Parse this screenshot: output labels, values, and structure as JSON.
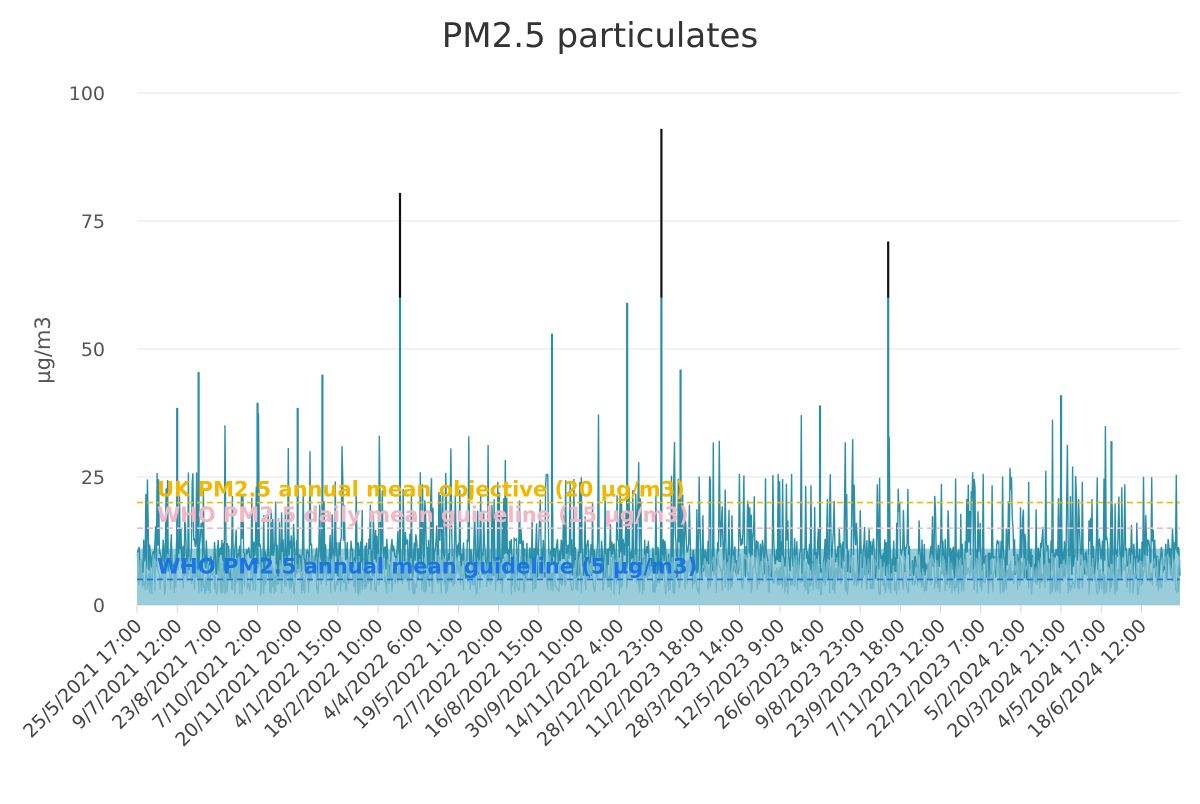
{
  "chart_data": {
    "type": "line",
    "title": "PM2.5 particulates",
    "ylabel": "µg/m3",
    "xlabel": "",
    "ylim": [
      0,
      100
    ],
    "yticks": [
      0,
      25,
      50,
      75,
      100
    ],
    "grid": true,
    "x_tick_labels": [
      "25/5/2021 17:00",
      "9/7/2021 12:00",
      "23/8/2021 7:00",
      "7/10/2021 2:00",
      "20/11/2021 20:00",
      "4/1/2022 15:00",
      "18/2/2022 10:00",
      "4/4/2022 6:00",
      "19/5/2022 1:00",
      "2/7/2022 20:00",
      "16/8/2022 15:00",
      "30/9/2022 10:00",
      "14/11/2022 4:00",
      "28/12/2022 23:00",
      "11/2/2023 18:00",
      "28/3/2023 14:00",
      "12/5/2023 9:00",
      "26/6/2023 4:00",
      "9/8/2023 23:00",
      "23/9/2023 18:00",
      "7/11/2023 12:00",
      "22/12/2023 7:00",
      "5/2/2024 2:00",
      "20/3/2024 21:00",
      "4/5/2024 17:00",
      "18/6/2024 12:00"
    ],
    "reference_lines": [
      {
        "label": "UK PM2.5 annual mean objective (20 µg/m3)",
        "value": 20,
        "color": "#f2b800"
      },
      {
        "label": "WHO PM2.5 daily mean guideline (15 µg/m3)",
        "value": 15,
        "color": "#f4b6c2"
      },
      {
        "label": "WHO PM2.5 annual mean guideline (5 µg/m3)",
        "value": 5,
        "color": "#1a73e8"
      }
    ],
    "bands": [
      {
        "from": 0,
        "to": 11,
        "color": "#7fc0d0"
      }
    ],
    "series": [
      {
        "line_color": "#2a8fa8",
        "peak_color": "#111111",
        "x_start": "25/5/2021 17:00",
        "x_end": "31/7/2024 12:00",
        "peaks": [
          {
            "x": "9/7/2021 12:00",
            "y": 38.5
          },
          {
            "x": "2/8/2021 9:00",
            "y": 45.5
          },
          {
            "x": "7/10/2021 2:00",
            "y": 39.5
          },
          {
            "x": "20/11/2021 20:00",
            "y": 38.5
          },
          {
            "x": "18/12/2021 10:00",
            "y": 45
          },
          {
            "x": "14/3/2022 22:00",
            "y": 80.5
          },
          {
            "x": "31/8/2022 9:00",
            "y": 53
          },
          {
            "x": "23/11/2022 4:00",
            "y": 59
          },
          {
            "x": "31/12/2022 8:00",
            "y": 93
          },
          {
            "x": "21/1/2023 17:00",
            "y": 46
          },
          {
            "x": "26/6/2023 4:00",
            "y": 39
          },
          {
            "x": "10/9/2023 4:00",
            "y": 71
          },
          {
            "x": "20/3/2024 21:00",
            "y": 41
          },
          {
            "x": "16/5/2024 2:00",
            "y": 32
          }
        ]
      }
    ]
  }
}
